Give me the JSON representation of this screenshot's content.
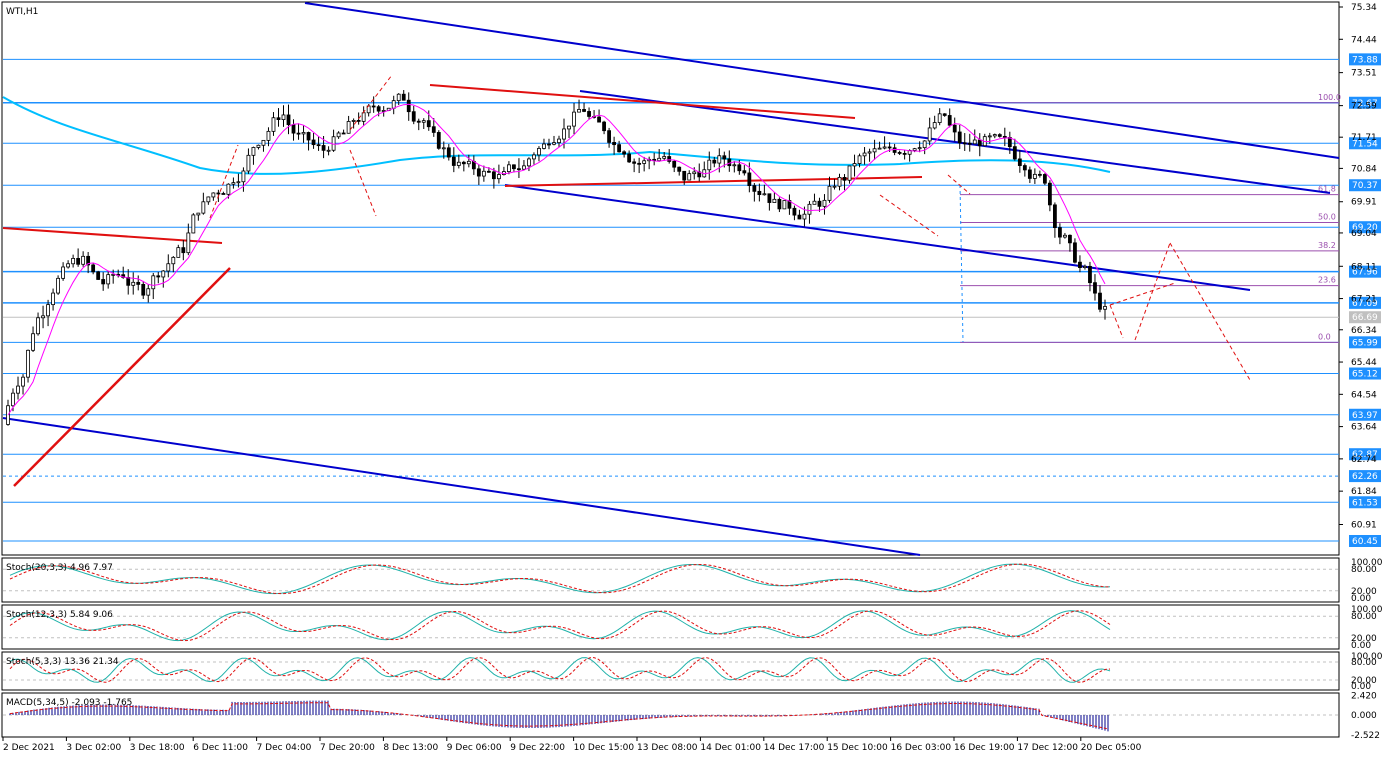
{
  "chart_data": {
    "type": "candlestick",
    "symbol_label": "WTI,H1",
    "price_axis": {
      "range": [
        60.0,
        75.4
      ],
      "ticks": [
        "75.34",
        "74.44",
        "73.51",
        "72.59",
        "71.71",
        "70.84",
        "69.91",
        "69.04",
        "68.11",
        "67.21",
        "66.34",
        "65.44",
        "64.54",
        "63.64",
        "62.74",
        "61.84",
        "60.91"
      ]
    },
    "horizontal_levels": [
      {
        "value": 73.88,
        "label": "73.88"
      },
      {
        "value": 72.67,
        "label": "72.67"
      },
      {
        "value": 71.54,
        "label": "71.54"
      },
      {
        "value": 70.37,
        "label": "70.37"
      },
      {
        "value": 69.2,
        "label": "69.20"
      },
      {
        "value": 67.96,
        "label": "67.96"
      },
      {
        "value": 67.09,
        "label": "67.09"
      },
      {
        "value": 66.69,
        "label": "66.69"
      },
      {
        "value": 65.99,
        "label": "65.99"
      },
      {
        "value": 65.12,
        "label": "65.12"
      },
      {
        "value": 63.97,
        "label": "63.97"
      },
      {
        "value": 62.87,
        "label": "62.87"
      },
      {
        "value": 62.26,
        "label": "62.26"
      },
      {
        "value": 61.53,
        "label": "61.53"
      },
      {
        "value": 60.45,
        "label": "60.45"
      }
    ],
    "fibonacci_levels": [
      {
        "label": "100.0",
        "value": 72.67
      },
      {
        "label": "61.8",
        "value": 70.11
      },
      {
        "label": "50.0",
        "value": 69.33
      },
      {
        "label": "38.2",
        "value": 68.54
      },
      {
        "label": "23.6",
        "value": 67.57
      },
      {
        "label": "0.0",
        "value": 65.99
      }
    ],
    "close_series": [
      65.2,
      67.0,
      68.0,
      68.3,
      67.6,
      67.9,
      67.4,
      68.1,
      68.6,
      69.9,
      70.3,
      70.8,
      71.8,
      72.4,
      71.6,
      71.3,
      71.8,
      72.3,
      72.6,
      72.8,
      72.2,
      71.3,
      70.9,
      70.7,
      70.6,
      70.9,
      71.5,
      72.0,
      72.5,
      71.9,
      71.4,
      71.0,
      71.2,
      70.5,
      70.8,
      71.1,
      70.9,
      70.2,
      69.8,
      69.6,
      69.9,
      70.6,
      71.2,
      71.3,
      71.4,
      71.7,
      72.3,
      71.4,
      71.6,
      71.5,
      71.0,
      70.5,
      68.8,
      67.9,
      66.8
    ],
    "x_axis": {
      "labels": [
        "2 Dec 2021",
        "3 Dec 02:00",
        "3 Dec 18:00",
        "6 Dec 11:00",
        "7 Dec 04:00",
        "7 Dec 20:00",
        "8 Dec 13:00",
        "9 Dec 06:00",
        "9 Dec 22:00",
        "10 Dec 15:00",
        "13 Dec 08:00",
        "14 Dec 01:00",
        "14 Dec 17:00",
        "15 Dec 10:00",
        "16 Dec 03:00",
        "16 Dec 19:00",
        "17 Dec 12:00",
        "20 Dec 05:00"
      ]
    },
    "colors": {
      "background": "#ffffff",
      "candles": "#000000",
      "hlines": "#1e90ff",
      "channel": "#0000cd",
      "trendline": "#e01010",
      "ma_fast": "#ff00ff",
      "ma_slow": "#00bfff",
      "stoch_main": "#20b2aa",
      "stoch_signal": "#e01010",
      "macd_hist": "#00008b",
      "badge": "#1e90ff",
      "fib": "#9b4fae"
    },
    "indicators": [
      {
        "name": "Stoch(20,3,3)",
        "values_text": "4.96 7.97",
        "scale": [
          "100.00",
          "80.00",
          "20.00",
          "0.00"
        ],
        "last": [
          4.96,
          7.97
        ]
      },
      {
        "name": "Stoch(12,3,3)",
        "values_text": "5.84 9.06",
        "scale": [
          "100.00",
          "80.00",
          "20.00",
          "0.00"
        ],
        "last": [
          5.84,
          9.06
        ]
      },
      {
        "name": "Stoch(5,3,3)",
        "values_text": "13.36 21.34",
        "scale": [
          "100.00",
          "80.00",
          "20.00",
          "0.00"
        ],
        "last": [
          13.36,
          21.34
        ]
      },
      {
        "name": "MACD(5,34,5)",
        "values_text": "-2.093 -1.765",
        "scale": [
          "2.420",
          "0.000",
          "-2.522"
        ],
        "last": [
          -2.093,
          -1.765
        ]
      }
    ]
  }
}
